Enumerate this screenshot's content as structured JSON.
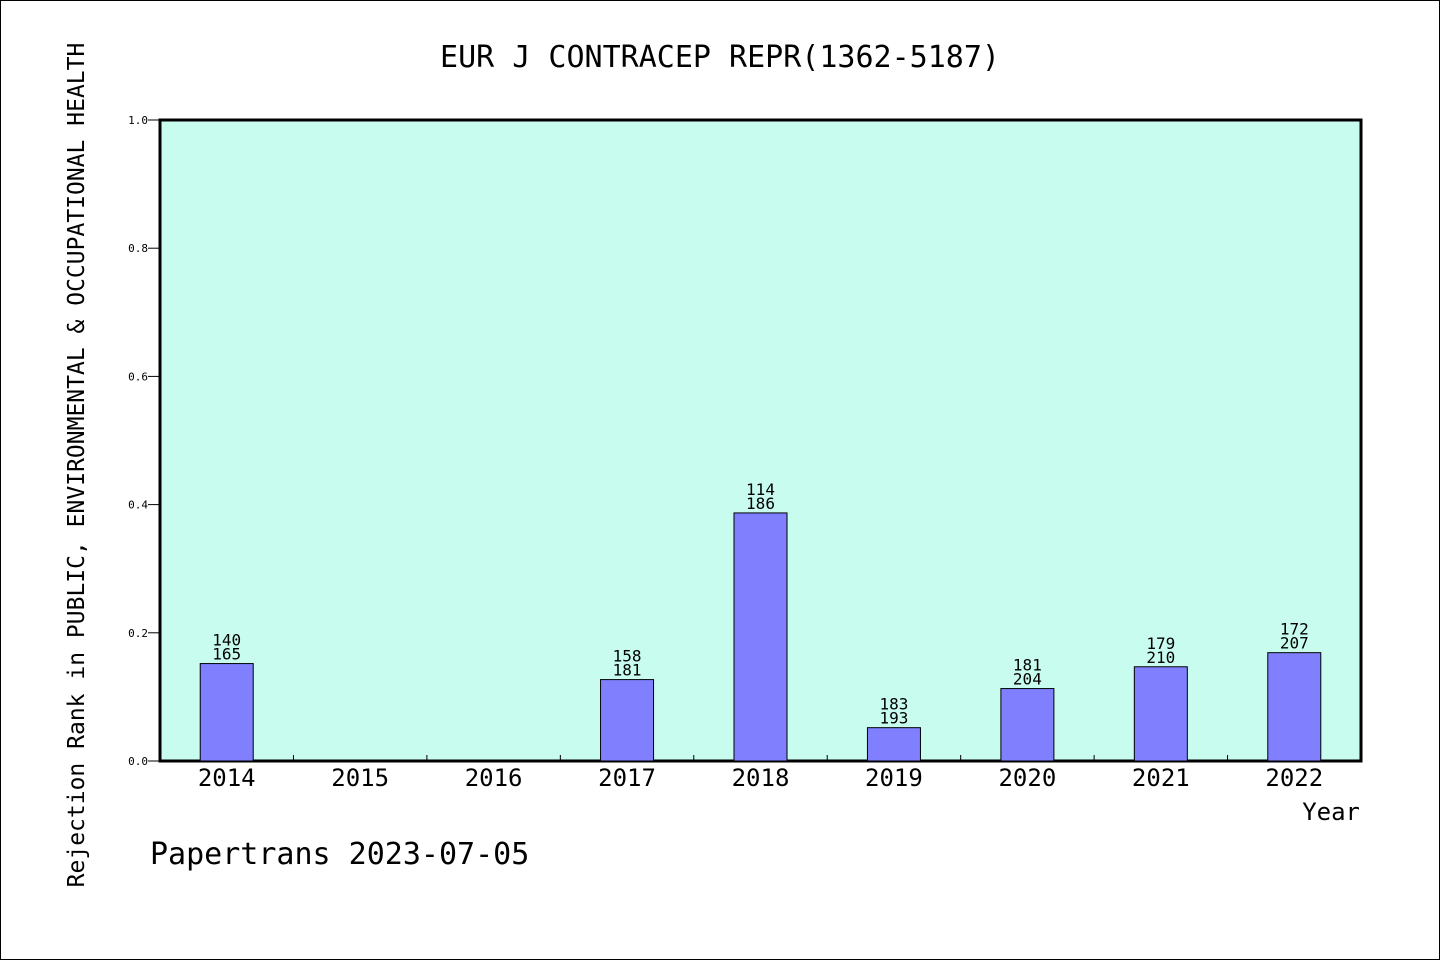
{
  "chart_data": {
    "type": "bar",
    "title": "EUR J CONTRACEP REPR(1362-5187)",
    "xlabel": "Year",
    "ylabel": "Rejection Rank in PUBLIC, ENVIRONMENTAL & OCCUPATIONAL HEALTH",
    "ylim": [
      0,
      1.0
    ],
    "yticks": [
      "0.0",
      "0.2",
      "0.4",
      "0.6",
      "0.8",
      "1.0"
    ],
    "grid": false,
    "colors": {
      "bar": "#8080ff",
      "plot_bg": "#c8fcee",
      "axis": "#000000"
    },
    "categories": [
      "2014",
      "2015",
      "2016",
      "2017",
      "2018",
      "2019",
      "2020",
      "2021",
      "2022"
    ],
    "values": [
      0.152,
      null,
      null,
      0.127,
      0.387,
      0.052,
      0.113,
      0.147,
      0.169
    ],
    "labels": [
      [
        "140",
        "165"
      ],
      null,
      null,
      [
        "158",
        "181"
      ],
      [
        "114",
        "186"
      ],
      [
        "183",
        "193"
      ],
      [
        "181",
        "204"
      ],
      [
        "179",
        "210"
      ],
      [
        "172",
        "207"
      ]
    ]
  },
  "footer": "Papertrans 2023-07-05"
}
